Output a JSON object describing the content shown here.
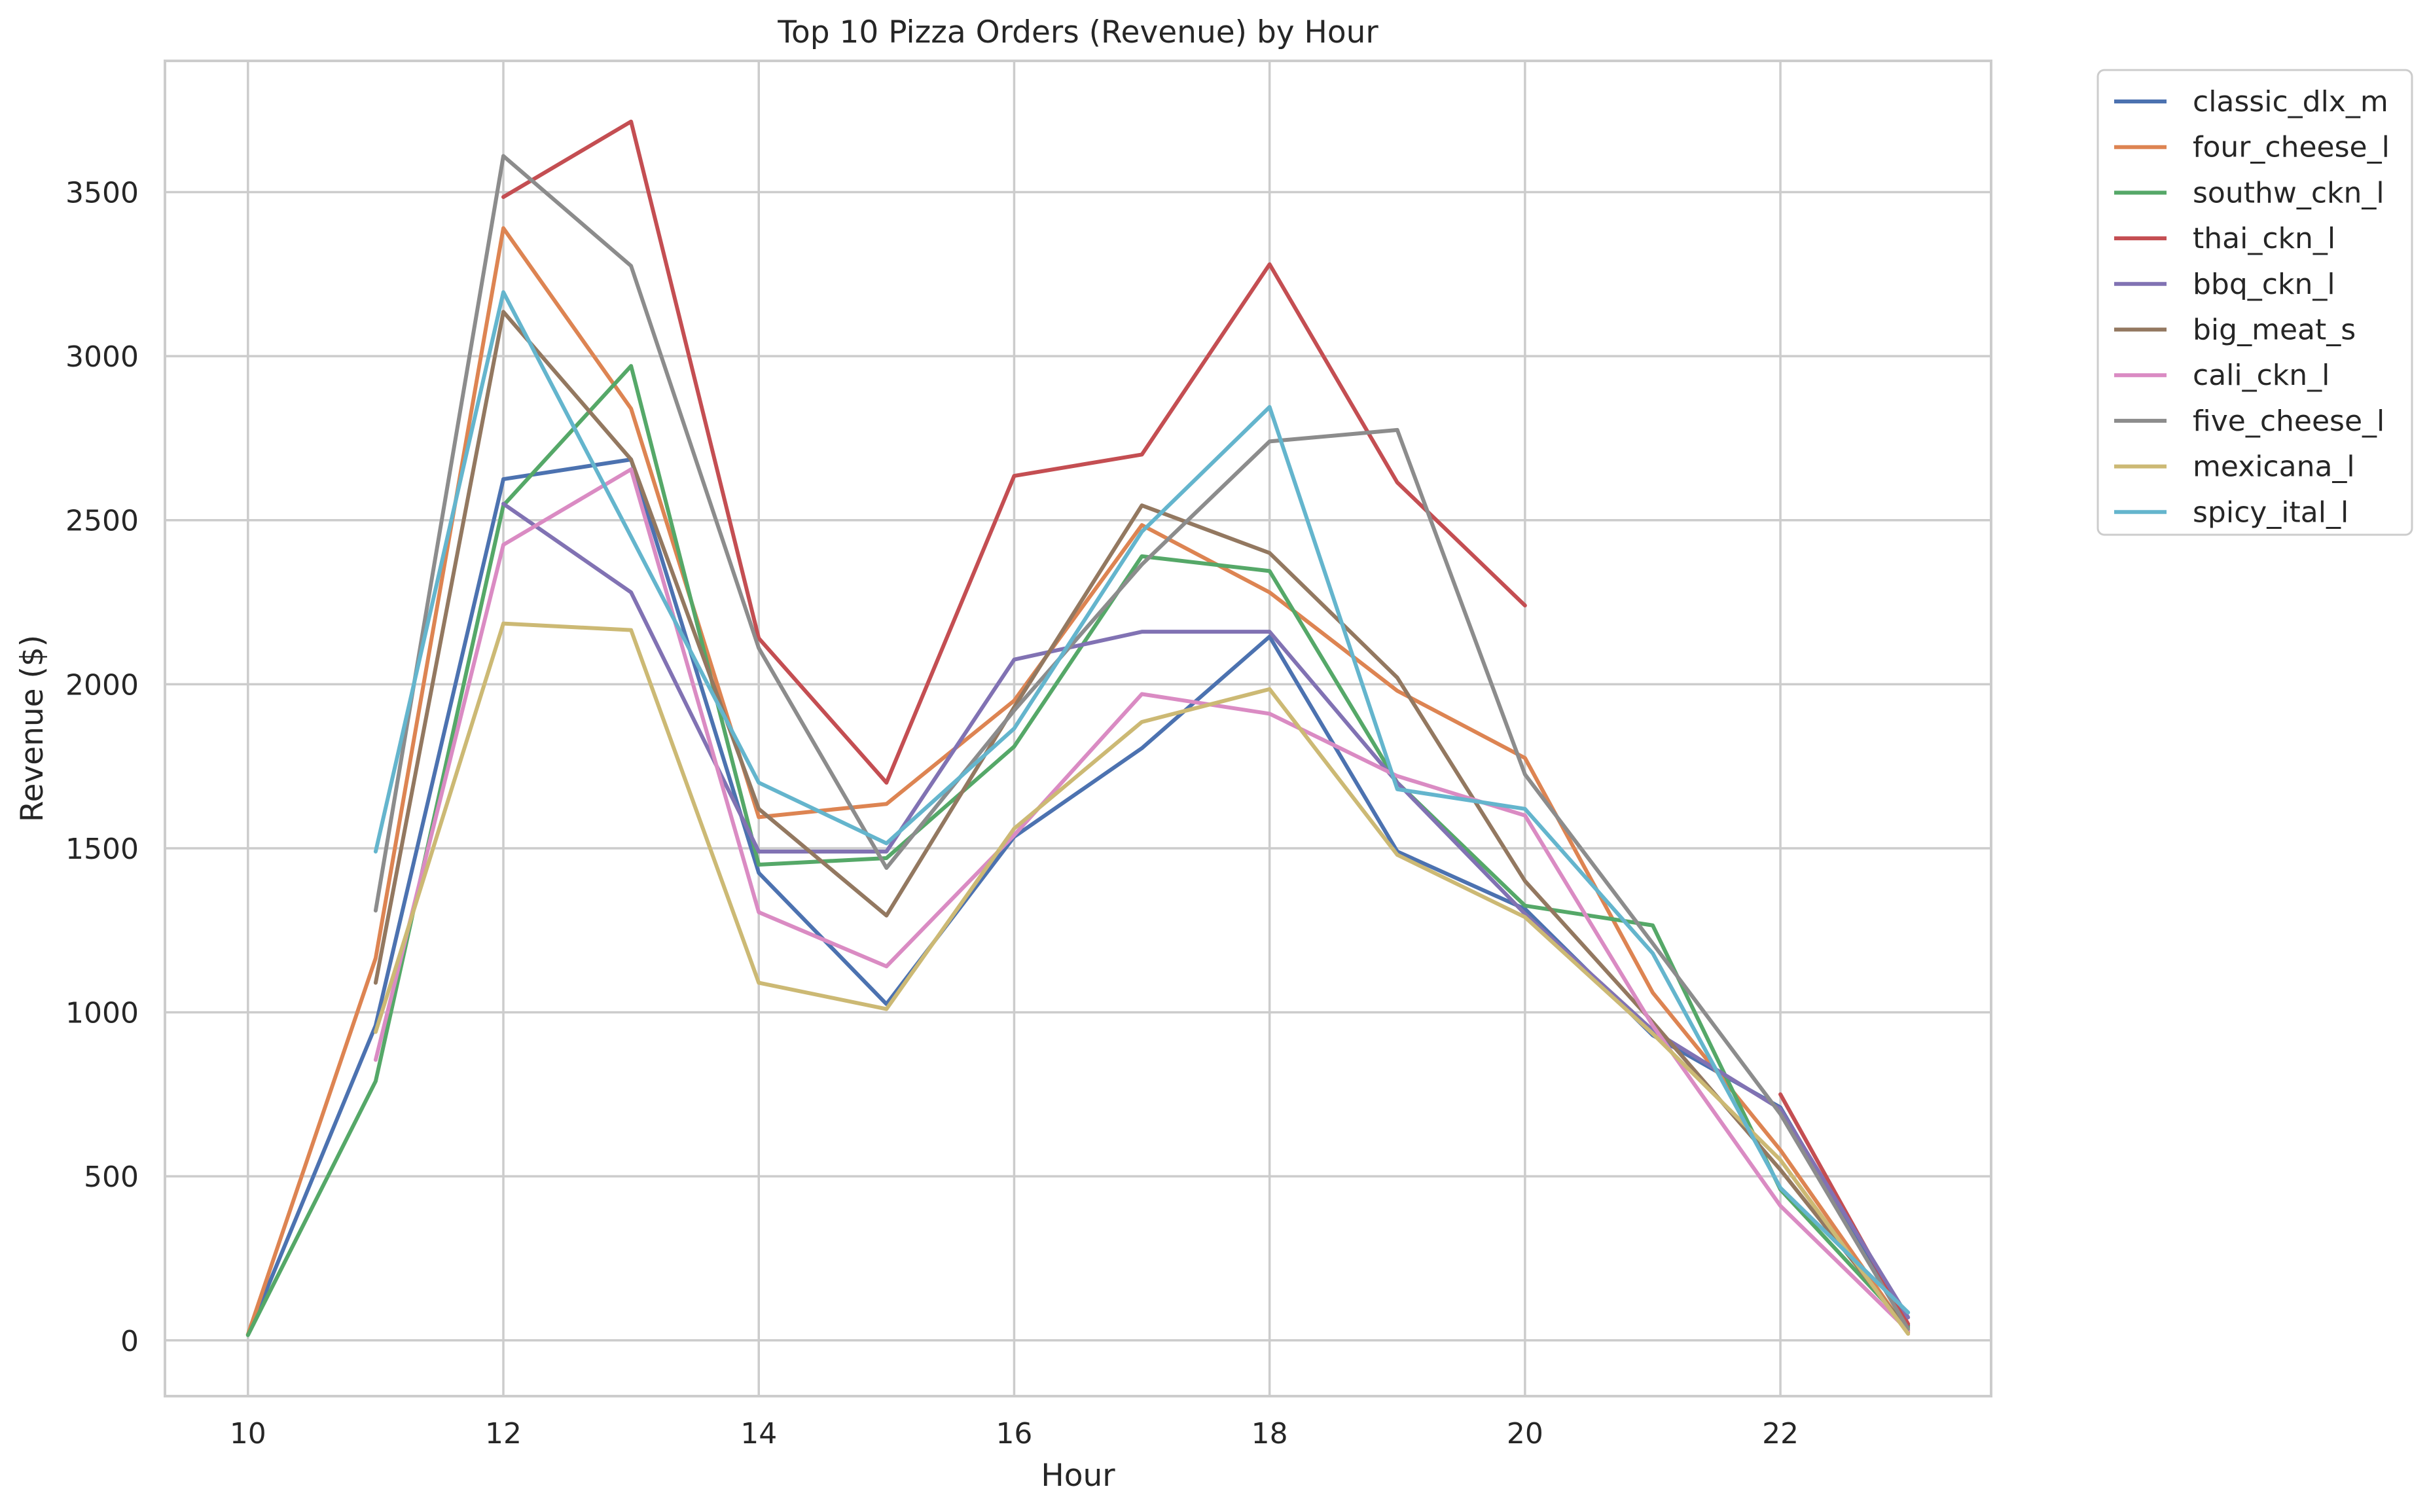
{
  "chart_data": {
    "type": "line",
    "title": "Top 10 Pizza Orders (Revenue) by Hour",
    "xlabel": "Hour",
    "ylabel": "Revenue ($)",
    "x": [
      10,
      11,
      12,
      13,
      14,
      15,
      16,
      17,
      18,
      19,
      20,
      21,
      22,
      23
    ],
    "xlim": [
      9.35,
      23.65
    ],
    "ylim": [
      -170,
      3900
    ],
    "xticks": [
      10,
      12,
      14,
      16,
      18,
      20,
      22
    ],
    "yticks": [
      0,
      500,
      1000,
      1500,
      2000,
      2500,
      3000,
      3500
    ],
    "grid": true,
    "legend_position": "outside-top-right",
    "series": [
      {
        "name": "classic_dlx_m",
        "color": "#4c72b0",
        "values": [
          17,
          960,
          2625,
          2685,
          1425,
          1025,
          1535,
          1805,
          2145,
          1490,
          1315,
          930,
          710,
          45
        ]
      },
      {
        "name": "four_cheese_l",
        "color": "#dd8452",
        "values": [
          18,
          1165,
          3390,
          2840,
          1595,
          1635,
          1950,
          2485,
          2280,
          1980,
          1775,
          1060,
          580,
          25
        ]
      },
      {
        "name": "southw_ckn_l",
        "color": "#55a868",
        "values": [
          16,
          790,
          2545,
          2970,
          1450,
          1470,
          1810,
          2390,
          2345,
          1700,
          1325,
          1265,
          460,
          40
        ]
      },
      {
        "name": "thai_ckn_l",
        "color": "#c44e52",
        "values": [
          18,
          null,
          3485,
          3715,
          2140,
          1700,
          2635,
          2700,
          3280,
          2615,
          2240,
          null,
          750,
          50
        ]
      },
      {
        "name": "bbq_ckn_l",
        "color": "#8172b3",
        "values": [
          null,
          null,
          2550,
          2280,
          1490,
          1490,
          2075,
          2160,
          2160,
          1700,
          1300,
          945,
          705,
          70
        ]
      },
      {
        "name": "big_meat_s",
        "color": "#937860",
        "values": [
          null,
          1090,
          3135,
          2685,
          1620,
          1295,
          1930,
          2545,
          2400,
          2020,
          1400,
          970,
          520,
          30
        ]
      },
      {
        "name": "cali_ckn_l",
        "color": "#da8bc3",
        "values": [
          null,
          855,
          2425,
          2655,
          1305,
          1140,
          1540,
          1970,
          1910,
          1720,
          1600,
          960,
          410,
          30
        ]
      },
      {
        "name": "five_cheese_l",
        "color": "#8c8c8c",
        "values": [
          null,
          1310,
          3610,
          3275,
          2110,
          1440,
          1920,
          2365,
          2740,
          2775,
          1725,
          1210,
          690,
          35
        ]
      },
      {
        "name": "mexicana_l",
        "color": "#ccb974",
        "values": [
          null,
          940,
          2185,
          2165,
          1090,
          1010,
          1560,
          1885,
          1985,
          1480,
          1290,
          935,
          550,
          20
        ]
      },
      {
        "name": "spicy_ital_l",
        "color": "#64b5cd",
        "values": [
          null,
          1490,
          3195,
          2450,
          1700,
          1515,
          1865,
          2465,
          2845,
          1680,
          1620,
          1180,
          465,
          85
        ]
      }
    ]
  }
}
